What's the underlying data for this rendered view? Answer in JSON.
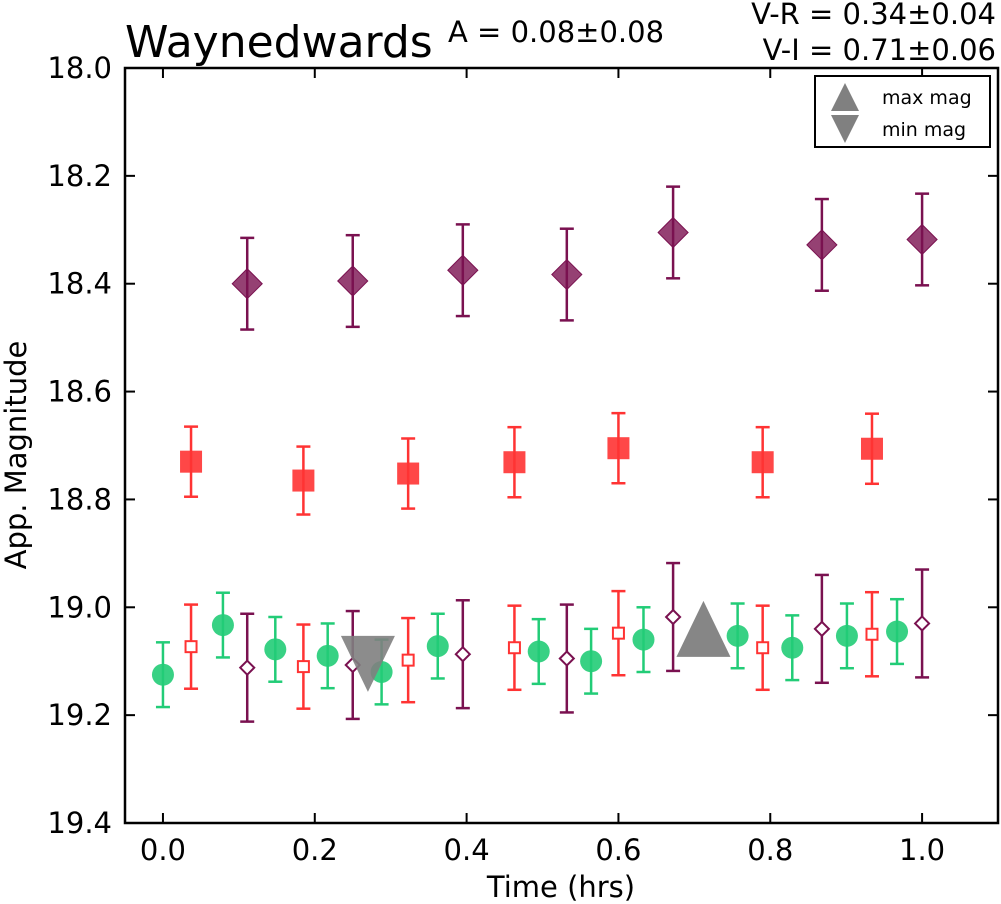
{
  "chart_data": {
    "type": "scatter",
    "title": "Waynedwards",
    "annotations": {
      "amplitude": "A  = 0.08±0.08",
      "v_r": "V-R = 0.34±0.04",
      "v_i": "V-I  = 0.71±0.06"
    },
    "xlabel": "Time (hrs)",
    "ylabel": "App. Magnitude",
    "xlim": [
      -0.05,
      1.1
    ],
    "ylim": [
      19.4,
      18.0
    ],
    "y_inverted": true,
    "x_ticks": [
      "0.0",
      "0.2",
      "0.4",
      "0.6",
      "0.8",
      "1.0"
    ],
    "y_ticks": [
      "18.0",
      "18.2",
      "18.4",
      "18.6",
      "18.8",
      "19.0",
      "19.2",
      "19.4"
    ],
    "grid": false,
    "legend": {
      "placement": "top-right",
      "entries": [
        {
          "label": "max mag",
          "marker": "triangle-up",
          "color": "#808080"
        },
        {
          "label": "min mag",
          "marker": "triangle-down",
          "color": "#808080"
        }
      ]
    },
    "series": [
      {
        "marker": "diamond-filled",
        "color": "#7a1150",
        "points": [
          {
            "x": 0.111,
            "y": 18.4,
            "err": 0.085
          },
          {
            "x": 0.25,
            "y": 18.395,
            "err": 0.085
          },
          {
            "x": 0.395,
            "y": 18.375,
            "err": 0.085
          },
          {
            "x": 0.532,
            "y": 18.383,
            "err": 0.085
          },
          {
            "x": 0.672,
            "y": 18.305,
            "err": 0.085
          },
          {
            "x": 0.868,
            "y": 18.328,
            "err": 0.085
          },
          {
            "x": 1.0,
            "y": 18.318,
            "err": 0.085
          }
        ]
      },
      {
        "marker": "square-filled",
        "color": "#ff3333",
        "points": [
          {
            "x": 0.037,
            "y": 18.73,
            "err": 0.065
          },
          {
            "x": 0.185,
            "y": 18.765,
            "err": 0.063
          },
          {
            "x": 0.323,
            "y": 18.752,
            "err": 0.065
          },
          {
            "x": 0.463,
            "y": 18.731,
            "err": 0.065
          },
          {
            "x": 0.6,
            "y": 18.705,
            "err": 0.065
          },
          {
            "x": 0.79,
            "y": 18.731,
            "err": 0.065
          },
          {
            "x": 0.934,
            "y": 18.706,
            "err": 0.065
          }
        ]
      },
      {
        "marker": "circle-filled",
        "color": "#22cc77",
        "points": [
          {
            "x": 0.0,
            "y": 19.125,
            "err": 0.06
          },
          {
            "x": 0.079,
            "y": 19.033,
            "err": 0.06
          },
          {
            "x": 0.148,
            "y": 19.078,
            "err": 0.06
          },
          {
            "x": 0.217,
            "y": 19.09,
            "err": 0.06
          },
          {
            "x": 0.288,
            "y": 19.12,
            "err": 0.06
          },
          {
            "x": 0.362,
            "y": 19.072,
            "err": 0.06
          },
          {
            "x": 0.495,
            "y": 19.082,
            "err": 0.06
          },
          {
            "x": 0.564,
            "y": 19.1,
            "err": 0.06
          },
          {
            "x": 0.633,
            "y": 19.06,
            "err": 0.06
          },
          {
            "x": 0.757,
            "y": 19.053,
            "err": 0.06
          },
          {
            "x": 0.829,
            "y": 19.075,
            "err": 0.06
          },
          {
            "x": 0.901,
            "y": 19.053,
            "err": 0.06
          },
          {
            "x": 0.967,
            "y": 19.045,
            "err": 0.06
          }
        ]
      },
      {
        "marker": "square-open",
        "color": "#ff3333",
        "points": [
          {
            "x": 0.037,
            "y": 19.073,
            "err": 0.078
          },
          {
            "x": 0.185,
            "y": 19.11,
            "err": 0.078
          },
          {
            "x": 0.323,
            "y": 19.098,
            "err": 0.078
          },
          {
            "x": 0.463,
            "y": 19.075,
            "err": 0.078
          },
          {
            "x": 0.6,
            "y": 19.048,
            "err": 0.078
          },
          {
            "x": 0.79,
            "y": 19.075,
            "err": 0.078
          },
          {
            "x": 0.934,
            "y": 19.05,
            "err": 0.078
          }
        ]
      },
      {
        "marker": "diamond-open",
        "color": "#7a1150",
        "points": [
          {
            "x": 0.111,
            "y": 19.112,
            "err": 0.1
          },
          {
            "x": 0.25,
            "y": 19.107,
            "err": 0.1
          },
          {
            "x": 0.395,
            "y": 19.087,
            "err": 0.1
          },
          {
            "x": 0.532,
            "y": 19.095,
            "err": 0.1
          },
          {
            "x": 0.672,
            "y": 19.018,
            "err": 0.1
          },
          {
            "x": 0.868,
            "y": 19.04,
            "err": 0.1
          },
          {
            "x": 1.0,
            "y": 19.03,
            "err": 0.1
          }
        ]
      }
    ],
    "extrema": [
      {
        "label": "max mag",
        "marker": "triangle-up",
        "x": 0.712,
        "y": 19.04,
        "color": "#808080"
      },
      {
        "label": "min mag",
        "marker": "triangle-down",
        "x": 0.27,
        "y": 19.105,
        "color": "#808080"
      }
    ]
  }
}
